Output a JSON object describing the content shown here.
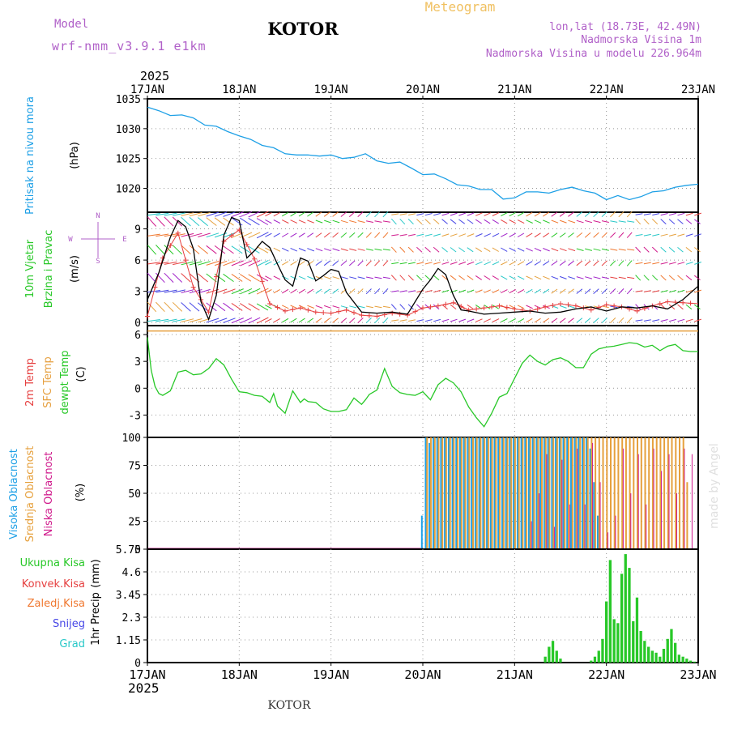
{
  "header": {
    "model_label": "Model",
    "model_name": "wrf-nmm_v3.9.1 e1km",
    "location": "KOTOR",
    "title": "Meteogram",
    "coords": "lon,lat (18.73E, 42.49N)",
    "altitude": "Nadmorska Visina 1m",
    "model_altitude": "Nadmorska Visina u modelu 226.964m"
  },
  "footer": {
    "location": "KOTOR",
    "credit": "made by Angel"
  },
  "colors": {
    "pressure": "#1ea0e6",
    "temp": "#e64040",
    "sfc": "#e6a040",
    "dew": "#28c828",
    "high_cloud": "#1ea0e6",
    "mid_cloud": "#e6a03c",
    "low_cloud": "#d01a8c",
    "rain": "#28c828",
    "conv": "#e64040",
    "frozen": "#f07830",
    "snow": "#4646e6",
    "hail": "#28c8c8",
    "wind_speed": "#000000"
  },
  "chart_data": [
    {
      "type": "line",
      "panel": "pressure",
      "ylabel": [
        "Pritisak na nivou mora",
        "(hPa)"
      ],
      "ylim": [
        1016,
        1035
      ],
      "yticks": [
        "1035",
        "1030",
        "1025",
        "1020"
      ],
      "ytick_values": [
        1035,
        1030,
        1025,
        1020
      ],
      "x_start_day": 17,
      "x_end_day": 23,
      "xticks": [
        "17JAN",
        "18JAN",
        "19JAN",
        "20JAN",
        "21JAN",
        "22JAN",
        "23JAN"
      ],
      "xyear": "2025",
      "series": [
        {
          "x_hours": [
            0,
            3,
            6,
            9,
            12,
            15,
            18,
            21,
            24,
            27,
            30,
            33,
            36,
            39,
            42,
            45,
            48,
            51,
            54,
            57,
            60,
            63,
            66,
            69,
            72,
            75,
            78,
            81,
            84,
            87,
            90,
            93,
            96,
            99,
            102,
            105,
            108,
            111,
            114,
            117,
            120,
            123,
            126,
            129,
            132,
            135,
            138,
            141,
            144
          ],
          "values": [
            1033.6,
            1033,
            1032.2,
            1032.3,
            1031.8,
            1030.6,
            1030.4,
            1029.5,
            1028.8,
            1028.2,
            1027.2,
            1026.8,
            1025.8,
            1025.6,
            1025.6,
            1025.4,
            1025.6,
            1025,
            1025.2,
            1025.8,
            1024.6,
            1024.2,
            1024.4,
            1023.4,
            1022.3,
            1022.4,
            1021.6,
            1020.6,
            1020.4,
            1019.8,
            1019.8,
            1018.2,
            1018.4,
            1019.4,
            1019.4,
            1019.2,
            1019.8,
            1020.2,
            1019.6,
            1019.2,
            1018.1,
            1018.8,
            1018.1,
            1018.6,
            1019.4,
            1019.6,
            1020.2,
            1020.5,
            1020.7
          ]
        }
      ]
    },
    {
      "type": "line",
      "panel": "wind",
      "ylabel": [
        "10m Vjetar",
        "Brzina i Pravac",
        "(m/s)"
      ],
      "compass": [
        "N",
        "S",
        "W",
        "E"
      ],
      "ylim": [
        -0.3,
        10.6
      ],
      "yticks": [
        "9",
        "6",
        "3",
        "0"
      ],
      "ytick_values": [
        9,
        6,
        3,
        0
      ],
      "series": [
        {
          "name": "speed",
          "x_hours": [
            0,
            3,
            6,
            8,
            10,
            12,
            14,
            16,
            18,
            20,
            22,
            24,
            26,
            28,
            30,
            32,
            34,
            36,
            38,
            40,
            42,
            44,
            46,
            48,
            50,
            52,
            56,
            60,
            64,
            68,
            72,
            74,
            76,
            78,
            80,
            82,
            84,
            88,
            92,
            96,
            100,
            104,
            108,
            112,
            116,
            120,
            124,
            128,
            132,
            136,
            140,
            144
          ],
          "values": [
            2.2,
            4.8,
            8.2,
            9.8,
            9.2,
            7.1,
            2.0,
            0.3,
            2.6,
            8.4,
            10.1,
            9.8,
            6.2,
            6.9,
            7.8,
            7.2,
            5.6,
            4.1,
            3.5,
            6.2,
            5.9,
            4.0,
            4.5,
            5.1,
            4.9,
            2.9,
            1.0,
            0.9,
            1.0,
            0.8,
            3.2,
            4.1,
            5.2,
            4.6,
            2.6,
            1.2,
            1.1,
            0.8,
            0.9,
            1.0,
            1.1,
            0.9,
            1.0,
            1.3,
            1.5,
            1.1,
            1.5,
            1.4,
            1.6,
            1.3,
            2.2,
            3.5
          ]
        },
        {
          "name": "gust",
          "x_hours": [
            0,
            4,
            8,
            12,
            16,
            20,
            24,
            28,
            32,
            36,
            40,
            44,
            48,
            52,
            56,
            60,
            64,
            68,
            72,
            76,
            80,
            84,
            88,
            92,
            96,
            100,
            104,
            108,
            112,
            116,
            120,
            124,
            128,
            132,
            136,
            140,
            144
          ],
          "values": [
            0.6,
            6.2,
            8.6,
            3.4,
            1.0,
            7.8,
            8.9,
            6.1,
            1.8,
            1.1,
            1.4,
            1.0,
            0.9,
            1.2,
            0.7,
            0.6,
            0.9,
            0.7,
            1.4,
            1.6,
            1.9,
            1.2,
            1.4,
            1.6,
            1.3,
            1.1,
            1.5,
            1.8,
            1.6,
            1.2,
            1.7,
            1.5,
            1.1,
            1.6,
            2.0,
            1.9,
            1.8
          ]
        }
      ]
    },
    {
      "type": "line",
      "panel": "temperature",
      "ylabel": [
        "2m Temp",
        "SFC Temp",
        "dewpt Temp",
        "(C)"
      ],
      "ylim": [
        -5.5,
        7.0
      ],
      "yticks": [
        "6",
        "3",
        "0",
        "-3"
      ],
      "ytick_values": [
        6,
        3,
        0,
        -3
      ],
      "series": [
        {
          "name": "dewpt",
          "x_hours": [
            0,
            1,
            2,
            3,
            4,
            6,
            8,
            10,
            12,
            14,
            16,
            18,
            20,
            22,
            24,
            26,
            28,
            30,
            32,
            33,
            34,
            36,
            38,
            40,
            41,
            42,
            44,
            46,
            48,
            50,
            52,
            54,
            56,
            57,
            58,
            60,
            62,
            64,
            66,
            68,
            70,
            72,
            74,
            76,
            78,
            80,
            82,
            84,
            86,
            88,
            90,
            92,
            94,
            96,
            98,
            100,
            102,
            104,
            106,
            108,
            110,
            112,
            114,
            116,
            118,
            120,
            122,
            124,
            126,
            128,
            130,
            132,
            134,
            136,
            138,
            140,
            142,
            144
          ],
          "values": [
            5.7,
            2.0,
            0.2,
            -0.6,
            -0.8,
            -0.3,
            1.8,
            2.0,
            1.5,
            1.6,
            2.2,
            3.3,
            2.6,
            1.0,
            -0.4,
            -0.5,
            -0.8,
            -0.9,
            -1.6,
            -0.6,
            -2.0,
            -2.8,
            -0.3,
            -1.6,
            -1.2,
            -1.5,
            -1.6,
            -2.3,
            -2.6,
            -2.6,
            -2.4,
            -1.1,
            -1.8,
            -1.3,
            -0.7,
            -0.2,
            2.2,
            0.2,
            -0.5,
            -0.7,
            -0.8,
            -0.4,
            -1.3,
            0.4,
            1.1,
            0.6,
            -0.4,
            -2.1,
            -3.3,
            -4.3,
            -2.8,
            -1.0,
            -0.6,
            1.1,
            2.8,
            3.7,
            3.0,
            2.6,
            3.2,
            3.4,
            3.0,
            2.3,
            2.3,
            3.8,
            4.4,
            4.6,
            4.7,
            4.9,
            5.1,
            5.0,
            4.6,
            4.8,
            4.2,
            4.7,
            4.9,
            4.2,
            4.1,
            4.1
          ]
        },
        {
          "name": "sfc",
          "x_hours": [
            0,
            144
          ],
          "values": [
            6.4,
            6.4
          ]
        }
      ]
    },
    {
      "type": "bar",
      "panel": "cloud",
      "ylabel": [
        "Visoka Oblacnost",
        "Srednja Oblacnost",
        "Niska Oblacnost",
        "(%)"
      ],
      "ylim": [
        0,
        100
      ],
      "yticks": [
        "100",
        "75",
        "50",
        "25",
        "0"
      ],
      "ytick_values": [
        100,
        75,
        50,
        25,
        0
      ],
      "series": [
        {
          "name": "high",
          "x_hours": [
            72,
            73,
            74,
            75,
            76,
            77,
            78,
            79,
            80,
            81,
            82,
            83,
            84,
            85,
            86,
            87,
            88,
            89,
            90,
            91,
            92,
            93,
            94,
            95,
            96,
            97,
            98,
            99,
            100,
            101,
            102,
            103,
            104,
            105,
            106,
            107,
            108,
            109,
            110,
            111,
            112,
            113,
            114,
            115,
            116,
            117,
            118
          ],
          "values": [
            30,
            100,
            95,
            100,
            100,
            100,
            100,
            100,
            100,
            100,
            100,
            100,
            100,
            100,
            100,
            100,
            100,
            100,
            100,
            100,
            100,
            100,
            100,
            100,
            100,
            100,
            100,
            100,
            100,
            100,
            100,
            100,
            100,
            100,
            100,
            100,
            100,
            100,
            100,
            100,
            100,
            100,
            100,
            100,
            90,
            60,
            30
          ]
        },
        {
          "name": "mid",
          "x_hours": [
            73,
            74,
            75,
            76,
            77,
            78,
            79,
            80,
            81,
            82,
            83,
            84,
            85,
            86,
            87,
            88,
            89,
            90,
            91,
            92,
            93,
            94,
            95,
            96,
            97,
            98,
            99,
            100,
            101,
            102,
            103,
            104,
            105,
            106,
            107,
            108,
            109,
            110,
            111,
            112,
            113,
            114,
            115,
            116,
            117,
            118,
            119,
            120,
            121,
            122,
            123,
            124,
            125,
            126,
            127,
            128,
            129,
            130,
            131,
            132,
            133,
            134,
            135,
            136,
            137,
            138,
            139,
            140,
            141
          ],
          "values": [
            100,
            100,
            100,
            100,
            100,
            100,
            100,
            100,
            100,
            100,
            100,
            100,
            100,
            100,
            100,
            100,
            100,
            100,
            100,
            100,
            100,
            100,
            100,
            100,
            100,
            100,
            100,
            100,
            100,
            100,
            100,
            100,
            100,
            100,
            100,
            100,
            100,
            100,
            100,
            100,
            100,
            100,
            100,
            100,
            100,
            100,
            100,
            100,
            100,
            100,
            100,
            100,
            100,
            100,
            100,
            100,
            100,
            100,
            100,
            100,
            100,
            100,
            100,
            100,
            100,
            100,
            100,
            100,
            60
          ]
        },
        {
          "name": "low",
          "x_hours": [
            100,
            102,
            104,
            106,
            108,
            110,
            112,
            114,
            116,
            118,
            120,
            122,
            124,
            126,
            128,
            130,
            132,
            134,
            136,
            138,
            140,
            142
          ],
          "values": [
            25,
            50,
            85,
            20,
            80,
            40,
            90,
            40,
            95,
            60,
            15,
            30,
            90,
            50,
            85,
            40,
            90,
            70,
            85,
            50,
            90,
            85
          ]
        }
      ]
    },
    {
      "type": "bar",
      "panel": "precip",
      "ylabel": [
        "1hr Precip",
        "(mm)"
      ],
      "legend": [
        "Ukupna Kisa",
        "Konvek.Kisa",
        "Zaledj.Kisa",
        "Snijeg",
        "Grad"
      ],
      "ylim": [
        0,
        5.75
      ],
      "yticks": [
        "5.75",
        "4.6",
        "3.45",
        "2.3",
        "1.15",
        "0"
      ],
      "ytick_values": [
        5.75,
        4.6,
        3.45,
        2.3,
        1.15,
        0
      ],
      "series": [
        {
          "name": "Ukupna Kisa",
          "x_hours": [
            104,
            105,
            106,
            107,
            108,
            116,
            117,
            118,
            119,
            120,
            121,
            122,
            123,
            124,
            125,
            126,
            127,
            128,
            129,
            130,
            131,
            132,
            133,
            134,
            135,
            136,
            137,
            138,
            139,
            140,
            141,
            142,
            143
          ],
          "values": [
            0.3,
            0.8,
            1.1,
            0.6,
            0.2,
            0.1,
            0.3,
            0.6,
            1.2,
            3.1,
            5.2,
            2.2,
            2.0,
            4.5,
            5.5,
            4.8,
            2.1,
            3.3,
            1.6,
            1.1,
            0.8,
            0.6,
            0.5,
            0.3,
            0.7,
            1.2,
            1.7,
            1.0,
            0.4,
            0.3,
            0.2,
            0.1,
            0.05
          ]
        }
      ]
    }
  ]
}
